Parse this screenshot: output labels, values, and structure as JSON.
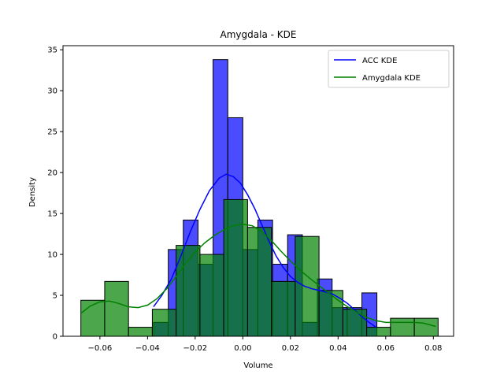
{
  "chart_data": {
    "type": "bar",
    "title": "Amygdala - KDE",
    "xlabel": "Volume",
    "ylabel": "Density",
    "xlim": [
      -0.0755,
      0.0885
    ],
    "ylim": [
      0,
      35.5
    ],
    "xticks": [
      -0.06,
      -0.04,
      -0.02,
      0.0,
      0.02,
      0.04,
      0.06,
      0.08
    ],
    "xtick_labels": [
      "−0.06",
      "−0.04",
      "−0.02",
      "0.00",
      "0.02",
      "0.04",
      "0.06",
      "0.08"
    ],
    "yticks": [
      0,
      5,
      10,
      15,
      20,
      25,
      30,
      35
    ],
    "ytick_labels": [
      "0",
      "5",
      "10",
      "15",
      "20",
      "25",
      "30",
      "35"
    ],
    "grid": false,
    "legend_position": "top-right",
    "series": [
      {
        "name": "ACC",
        "color": "#0000ff",
        "bins": [
          {
            "x0": -0.0375,
            "x1": -0.0313,
            "y": 1.7
          },
          {
            "x0": -0.0313,
            "x1": -0.025,
            "y": 10.6
          },
          {
            "x0": -0.025,
            "x1": -0.0188,
            "y": 14.2
          },
          {
            "x0": -0.0188,
            "x1": -0.0125,
            "y": 8.8
          },
          {
            "x0": -0.0125,
            "x1": -0.0063,
            "y": 33.8
          },
          {
            "x0": -0.0063,
            "x1": 0.0,
            "y": 26.7
          },
          {
            "x0": 0.0,
            "x1": 0.0063,
            "y": 10.6
          },
          {
            "x0": 0.0063,
            "x1": 0.0125,
            "y": 14.2
          },
          {
            "x0": 0.0125,
            "x1": 0.0188,
            "y": 8.8
          },
          {
            "x0": 0.0188,
            "x1": 0.025,
            "y": 12.4
          },
          {
            "x0": 0.025,
            "x1": 0.0313,
            "y": 1.7
          },
          {
            "x0": 0.0313,
            "x1": 0.0375,
            "y": 7.0
          },
          {
            "x0": 0.0375,
            "x1": 0.0438,
            "y": 3.5
          },
          {
            "x0": 0.0438,
            "x1": 0.05,
            "y": 3.5
          },
          {
            "x0": 0.05,
            "x1": 0.0563,
            "y": 5.3
          }
        ]
      },
      {
        "name": "Amygdala",
        "color": "#008000",
        "bins": [
          {
            "x0": -0.068,
            "x1": -0.058,
            "y": 4.4
          },
          {
            "x0": -0.058,
            "x1": -0.048,
            "y": 6.7
          },
          {
            "x0": -0.048,
            "x1": -0.038,
            "y": 1.1
          },
          {
            "x0": -0.038,
            "x1": -0.028,
            "y": 3.3
          },
          {
            "x0": -0.028,
            "x1": -0.018,
            "y": 11.1
          },
          {
            "x0": -0.018,
            "x1": -0.008,
            "y": 10.0
          },
          {
            "x0": -0.008,
            "x1": 0.002,
            "y": 16.7
          },
          {
            "x0": 0.002,
            "x1": 0.012,
            "y": 13.3
          },
          {
            "x0": 0.012,
            "x1": 0.022,
            "y": 6.7
          },
          {
            "x0": 0.022,
            "x1": 0.032,
            "y": 12.2
          },
          {
            "x0": 0.032,
            "x1": 0.042,
            "y": 5.6
          },
          {
            "x0": 0.042,
            "x1": 0.052,
            "y": 3.3
          },
          {
            "x0": 0.052,
            "x1": 0.062,
            "y": 1.1
          },
          {
            "x0": 0.062,
            "x1": 0.072,
            "y": 2.2
          },
          {
            "x0": 0.072,
            "x1": 0.082,
            "y": 2.2
          }
        ]
      }
    ],
    "kde": [
      {
        "name": "ACC KDE",
        "color": "#0000ff",
        "points": [
          [
            -0.0375,
            3.6
          ],
          [
            -0.034,
            5.0
          ],
          [
            -0.03,
            7.0
          ],
          [
            -0.026,
            9.8
          ],
          [
            -0.022,
            12.8
          ],
          [
            -0.018,
            15.5
          ],
          [
            -0.014,
            17.8
          ],
          [
            -0.01,
            19.3
          ],
          [
            -0.007,
            19.8
          ],
          [
            -0.004,
            19.5
          ],
          [
            -0.001,
            18.7
          ],
          [
            0.002,
            17.3
          ],
          [
            0.005,
            15.6
          ],
          [
            0.008,
            13.6
          ],
          [
            0.011,
            11.6
          ],
          [
            0.014,
            9.8
          ],
          [
            0.017,
            8.4
          ],
          [
            0.02,
            7.3
          ],
          [
            0.023,
            6.6
          ],
          [
            0.026,
            6.1
          ],
          [
            0.029,
            5.8
          ],
          [
            0.032,
            5.6
          ],
          [
            0.035,
            5.4
          ],
          [
            0.038,
            5.1
          ],
          [
            0.041,
            4.6
          ],
          [
            0.044,
            4.0
          ],
          [
            0.047,
            3.2
          ],
          [
            0.05,
            2.4
          ],
          [
            0.053,
            1.7
          ],
          [
            0.056,
            1.1
          ]
        ]
      },
      {
        "name": "Amygdala KDE",
        "color": "#008000",
        "points": [
          [
            -0.068,
            2.8
          ],
          [
            -0.064,
            3.7
          ],
          [
            -0.06,
            4.2
          ],
          [
            -0.056,
            4.3
          ],
          [
            -0.052,
            4.0
          ],
          [
            -0.048,
            3.6
          ],
          [
            -0.044,
            3.5
          ],
          [
            -0.04,
            3.8
          ],
          [
            -0.036,
            4.6
          ],
          [
            -0.032,
            5.8
          ],
          [
            -0.028,
            7.3
          ],
          [
            -0.024,
            8.9
          ],
          [
            -0.02,
            10.3
          ],
          [
            -0.016,
            11.4
          ],
          [
            -0.012,
            12.3
          ],
          [
            -0.008,
            13.0
          ],
          [
            -0.004,
            13.5
          ],
          [
            0.0,
            13.7
          ],
          [
            0.004,
            13.5
          ],
          [
            0.008,
            12.8
          ],
          [
            0.012,
            11.7
          ],
          [
            0.016,
            10.4
          ],
          [
            0.02,
            9.2
          ],
          [
            0.024,
            8.1
          ],
          [
            0.028,
            7.1
          ],
          [
            0.032,
            6.2
          ],
          [
            0.036,
            5.3
          ],
          [
            0.04,
            4.4
          ],
          [
            0.044,
            3.6
          ],
          [
            0.048,
            2.9
          ],
          [
            0.052,
            2.3
          ],
          [
            0.056,
            1.9
          ],
          [
            0.06,
            1.7
          ],
          [
            0.064,
            1.7
          ],
          [
            0.068,
            1.7
          ],
          [
            0.072,
            1.7
          ],
          [
            0.076,
            1.6
          ],
          [
            0.081,
            1.2
          ]
        ]
      }
    ],
    "legend": [
      {
        "label": "ACC KDE",
        "color": "#0000ff"
      },
      {
        "label": "Amygdala KDE",
        "color": "#008000"
      }
    ]
  }
}
